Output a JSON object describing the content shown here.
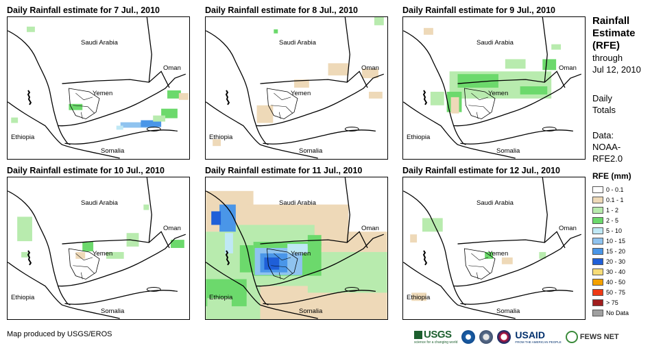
{
  "panels": [
    {
      "title": "Daily Rainfall estimate for 7 Jul., 2010"
    },
    {
      "title": "Daily Rainfall estimate for 8 Jul., 2010"
    },
    {
      "title": "Daily Rainfall estimate for 9 Jul., 2010"
    },
    {
      "title": "Daily Rainfall estimate for 10 Jul., 2010"
    },
    {
      "title": "Daily Rainfall estimate for 11 Jul., 2010"
    },
    {
      "title": "Daily Rainfall estimate for 12 Jul., 2010"
    }
  ],
  "map_labels": {
    "saudi": "Saudi Arabia",
    "oman": "Oman",
    "yemen": "Yemen",
    "ethiopia": "Ethiopia",
    "somalia": "Somalia"
  },
  "sidebar": {
    "title_line1": "Rainfall",
    "title_line2": "Estimate",
    "title_line3": "(RFE)",
    "through": "through",
    "date": "Jul 12, 2010",
    "daily1": "Daily",
    "daily2": "Totals",
    "data1": "Data:",
    "data2": "NOAA-",
    "data3": "RFE2.0"
  },
  "legend": {
    "title": "RFE (mm)",
    "items": [
      {
        "label": "0 - 0.1",
        "color": "#ffffff"
      },
      {
        "label": "0.1 - 1",
        "color": "#eed9b8"
      },
      {
        "label": "1 - 2",
        "color": "#b8ebae"
      },
      {
        "label": "2 - 5",
        "color": "#6cd96c"
      },
      {
        "label": "5 - 10",
        "color": "#bfe8f5"
      },
      {
        "label": "10 - 15",
        "color": "#8fc3ef"
      },
      {
        "label": "15 - 20",
        "color": "#4a96e8"
      },
      {
        "label": "20 - 30",
        "color": "#1f5fd8"
      },
      {
        "label": "30 - 40",
        "color": "#f7dc78"
      },
      {
        "label": "40 - 50",
        "color": "#f4a100"
      },
      {
        "label": "50 - 75",
        "color": "#ee3a16"
      },
      {
        "label": "> 75",
        "color": "#a11e1e"
      },
      {
        "label": "No Data",
        "color": "#a0a0a0"
      }
    ]
  },
  "footer": "Map produced by USGS/EROS",
  "logos": {
    "usgs": "USGS",
    "usgs_tag": "science for a changing world",
    "usaid": "USAID",
    "usaid_tag": "FROM THE AMERICAN PEOPLE",
    "fews": "FEWS NET"
  }
}
